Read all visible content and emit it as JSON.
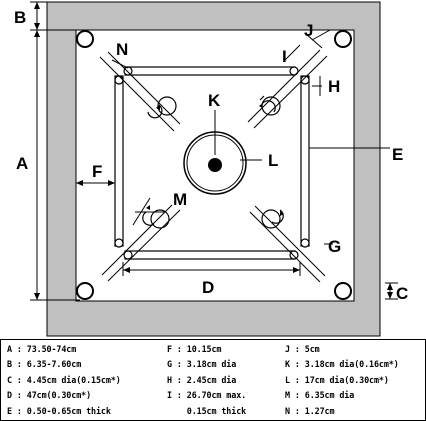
{
  "labels": {
    "A": "A",
    "B": "B",
    "C": "C",
    "D": "D",
    "E": "E",
    "F": "F",
    "G": "G",
    "H": "H",
    "I": "I",
    "J": "J",
    "K": "K",
    "L": "L",
    "M": "M",
    "N": "N"
  },
  "legend": {
    "col1": [
      "A : 73.50-74cm",
      "B : 6.35-7.60cm",
      "C : 4.45cm dia(0.15cm*)",
      "D : 47cm(0.30cm*)",
      "E : 0.50-0.65cm thick"
    ],
    "col2": [
      "F : 10.15cm",
      "G : 3.18cm dia",
      "H : 2.45cm dia",
      "I : 26.70cm max.",
      "    0.15cm thick"
    ],
    "col3": [
      "J : 5cm",
      "K : 3.18cm dia(0.16cm*)",
      "L : 17cm dia(0.30cm*)",
      "M : 6.35cm dia",
      "N : 1.27cm"
    ]
  },
  "colors": {
    "frame": "#c0c0c0",
    "board": "#ffffff",
    "line": "#000000"
  }
}
